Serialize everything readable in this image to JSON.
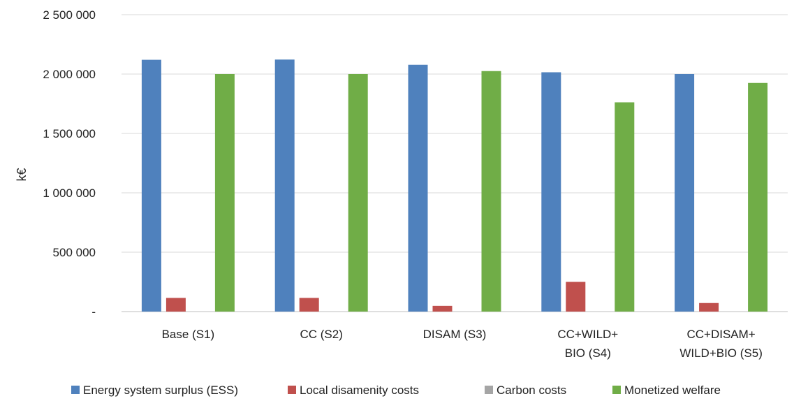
{
  "chart_data": {
    "type": "bar",
    "title": "",
    "xlabel": "",
    "ylabel": "k€",
    "ylim": [
      0,
      2500000
    ],
    "yticks": [
      {
        "value": 0,
        "label": "-"
      },
      {
        "value": 500000,
        "label": "500 000"
      },
      {
        "value": 1000000,
        "label": "1 000 000"
      },
      {
        "value": 1500000,
        "label": "1 500 000"
      },
      {
        "value": 2000000,
        "label": "2 000 000"
      },
      {
        "value": 2500000,
        "label": "2 500 000"
      }
    ],
    "grid": true,
    "legend_position": "bottom",
    "categories": [
      [
        "Base (S1)"
      ],
      [
        "CC (S2)"
      ],
      [
        "DISAM (S3)"
      ],
      [
        "CC+WILD+",
        "BIO (S4)"
      ],
      [
        "CC+DISAM+",
        "WILD+BIO (S5)"
      ]
    ],
    "series": [
      {
        "name": "Energy system surplus (ESS)",
        "color": "#4f81bd",
        "values": [
          2120000,
          2122000,
          2078000,
          2015000,
          2000000
        ]
      },
      {
        "name": "Local disamenity costs",
        "color": "#c0504d",
        "values": [
          115000,
          115000,
          48000,
          250000,
          72000
        ]
      },
      {
        "name": "Carbon costs",
        "color": "#a5a5a5",
        "values": [
          0,
          0,
          0,
          0,
          0
        ]
      },
      {
        "name": "Monetized welfare",
        "color": "#70ad47",
        "values": [
          2000000,
          2000000,
          2025000,
          1762000,
          1925000
        ]
      }
    ]
  }
}
